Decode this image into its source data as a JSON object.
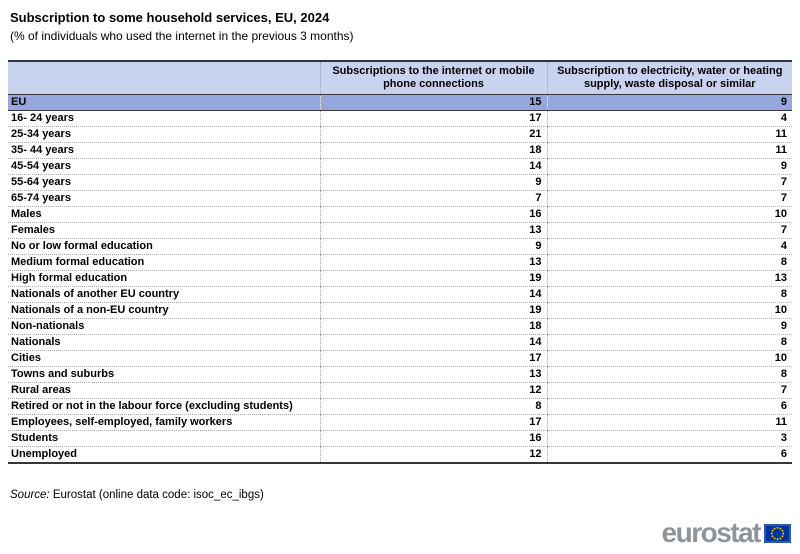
{
  "header": {
    "title": "Subscription to some household services, EU, 2024",
    "subtitle": "(% of individuals who used the internet in the previous 3 months)"
  },
  "chart_data": {
    "type": "table",
    "title": "Subscription to some household services, EU, 2024",
    "subtitle": "(% of individuals who used the internet in the previous 3 months)",
    "unit": "% of individuals who used the internet in the previous 3 months",
    "columns": [
      "Subscriptions to the internet or mobile phone connections",
      "Subscription to electricity, water or heating supply, waste disposal or similar"
    ],
    "rows": [
      {
        "label": "EU",
        "values": [
          15,
          9
        ],
        "highlighted": true
      },
      {
        "label": "16- 24 years",
        "values": [
          17,
          4
        ]
      },
      {
        "label": "25-34 years",
        "values": [
          21,
          11
        ]
      },
      {
        "label": "35- 44 years",
        "values": [
          18,
          11
        ]
      },
      {
        "label": "45-54 years",
        "values": [
          14,
          9
        ]
      },
      {
        "label": "55-64 years",
        "values": [
          9,
          7
        ]
      },
      {
        "label": "65-74 years",
        "values": [
          7,
          7
        ]
      },
      {
        "label": "Males",
        "values": [
          16,
          10
        ]
      },
      {
        "label": "Females",
        "values": [
          13,
          7
        ]
      },
      {
        "label": "No or low formal education",
        "values": [
          9,
          4
        ]
      },
      {
        "label": "Medium formal education",
        "values": [
          13,
          8
        ]
      },
      {
        "label": "High formal education",
        "values": [
          19,
          13
        ]
      },
      {
        "label": "Nationals of another EU country",
        "values": [
          14,
          8
        ]
      },
      {
        "label": "Nationals of a non-EU country",
        "values": [
          19,
          10
        ]
      },
      {
        "label": "Non-nationals",
        "values": [
          18,
          9
        ]
      },
      {
        "label": "Nationals",
        "values": [
          14,
          8
        ]
      },
      {
        "label": "Cities",
        "values": [
          17,
          10
        ]
      },
      {
        "label": "Towns and suburbs",
        "values": [
          13,
          8
        ]
      },
      {
        "label": "Rural areas",
        "values": [
          12,
          7
        ]
      },
      {
        "label": "Retired or not in the labour force (excluding students)",
        "values": [
          8,
          6
        ]
      },
      {
        "label": "Employees, self-employed, family workers",
        "values": [
          17,
          11
        ]
      },
      {
        "label": "Students",
        "values": [
          16,
          3
        ]
      },
      {
        "label": "Unemployed",
        "values": [
          12,
          6
        ]
      }
    ],
    "legend_position": "none",
    "grid": "dotted-row-separators"
  },
  "footer": {
    "source_prefix": "Source:",
    "source_text": " Eurostat (online data code: isoc_ec_ibgs)"
  },
  "logo": {
    "text": "eurostat",
    "flag_icon": "eu-flag-icon"
  },
  "colors": {
    "header_bg": "#C9D3EF",
    "eu_row_bg": "#96A7DD",
    "border_dark": "#35373D",
    "logo_gray": "#8E959A",
    "flag_blue": "#003399",
    "flag_star": "#FFCC00"
  }
}
